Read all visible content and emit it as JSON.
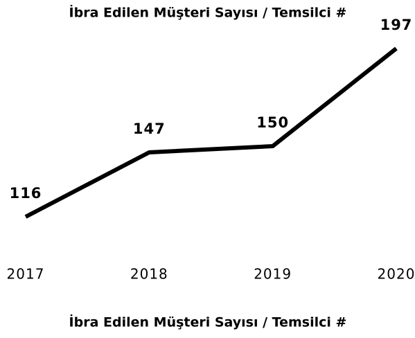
{
  "chart_data": {
    "type": "line",
    "title": "İbra Edilen Müşteri Sayısı / Temsilci #",
    "x_label": "İbra Edilen Müşteri Sayısı / Temsilci #",
    "categories": [
      "2017",
      "2018",
      "2019",
      "2020"
    ],
    "series": [
      {
        "name": "İbra Edilen Müşteri Sayısı / Temsilci #",
        "color": "#000000",
        "values": [
          116,
          147,
          150,
          197
        ]
      }
    ]
  }
}
